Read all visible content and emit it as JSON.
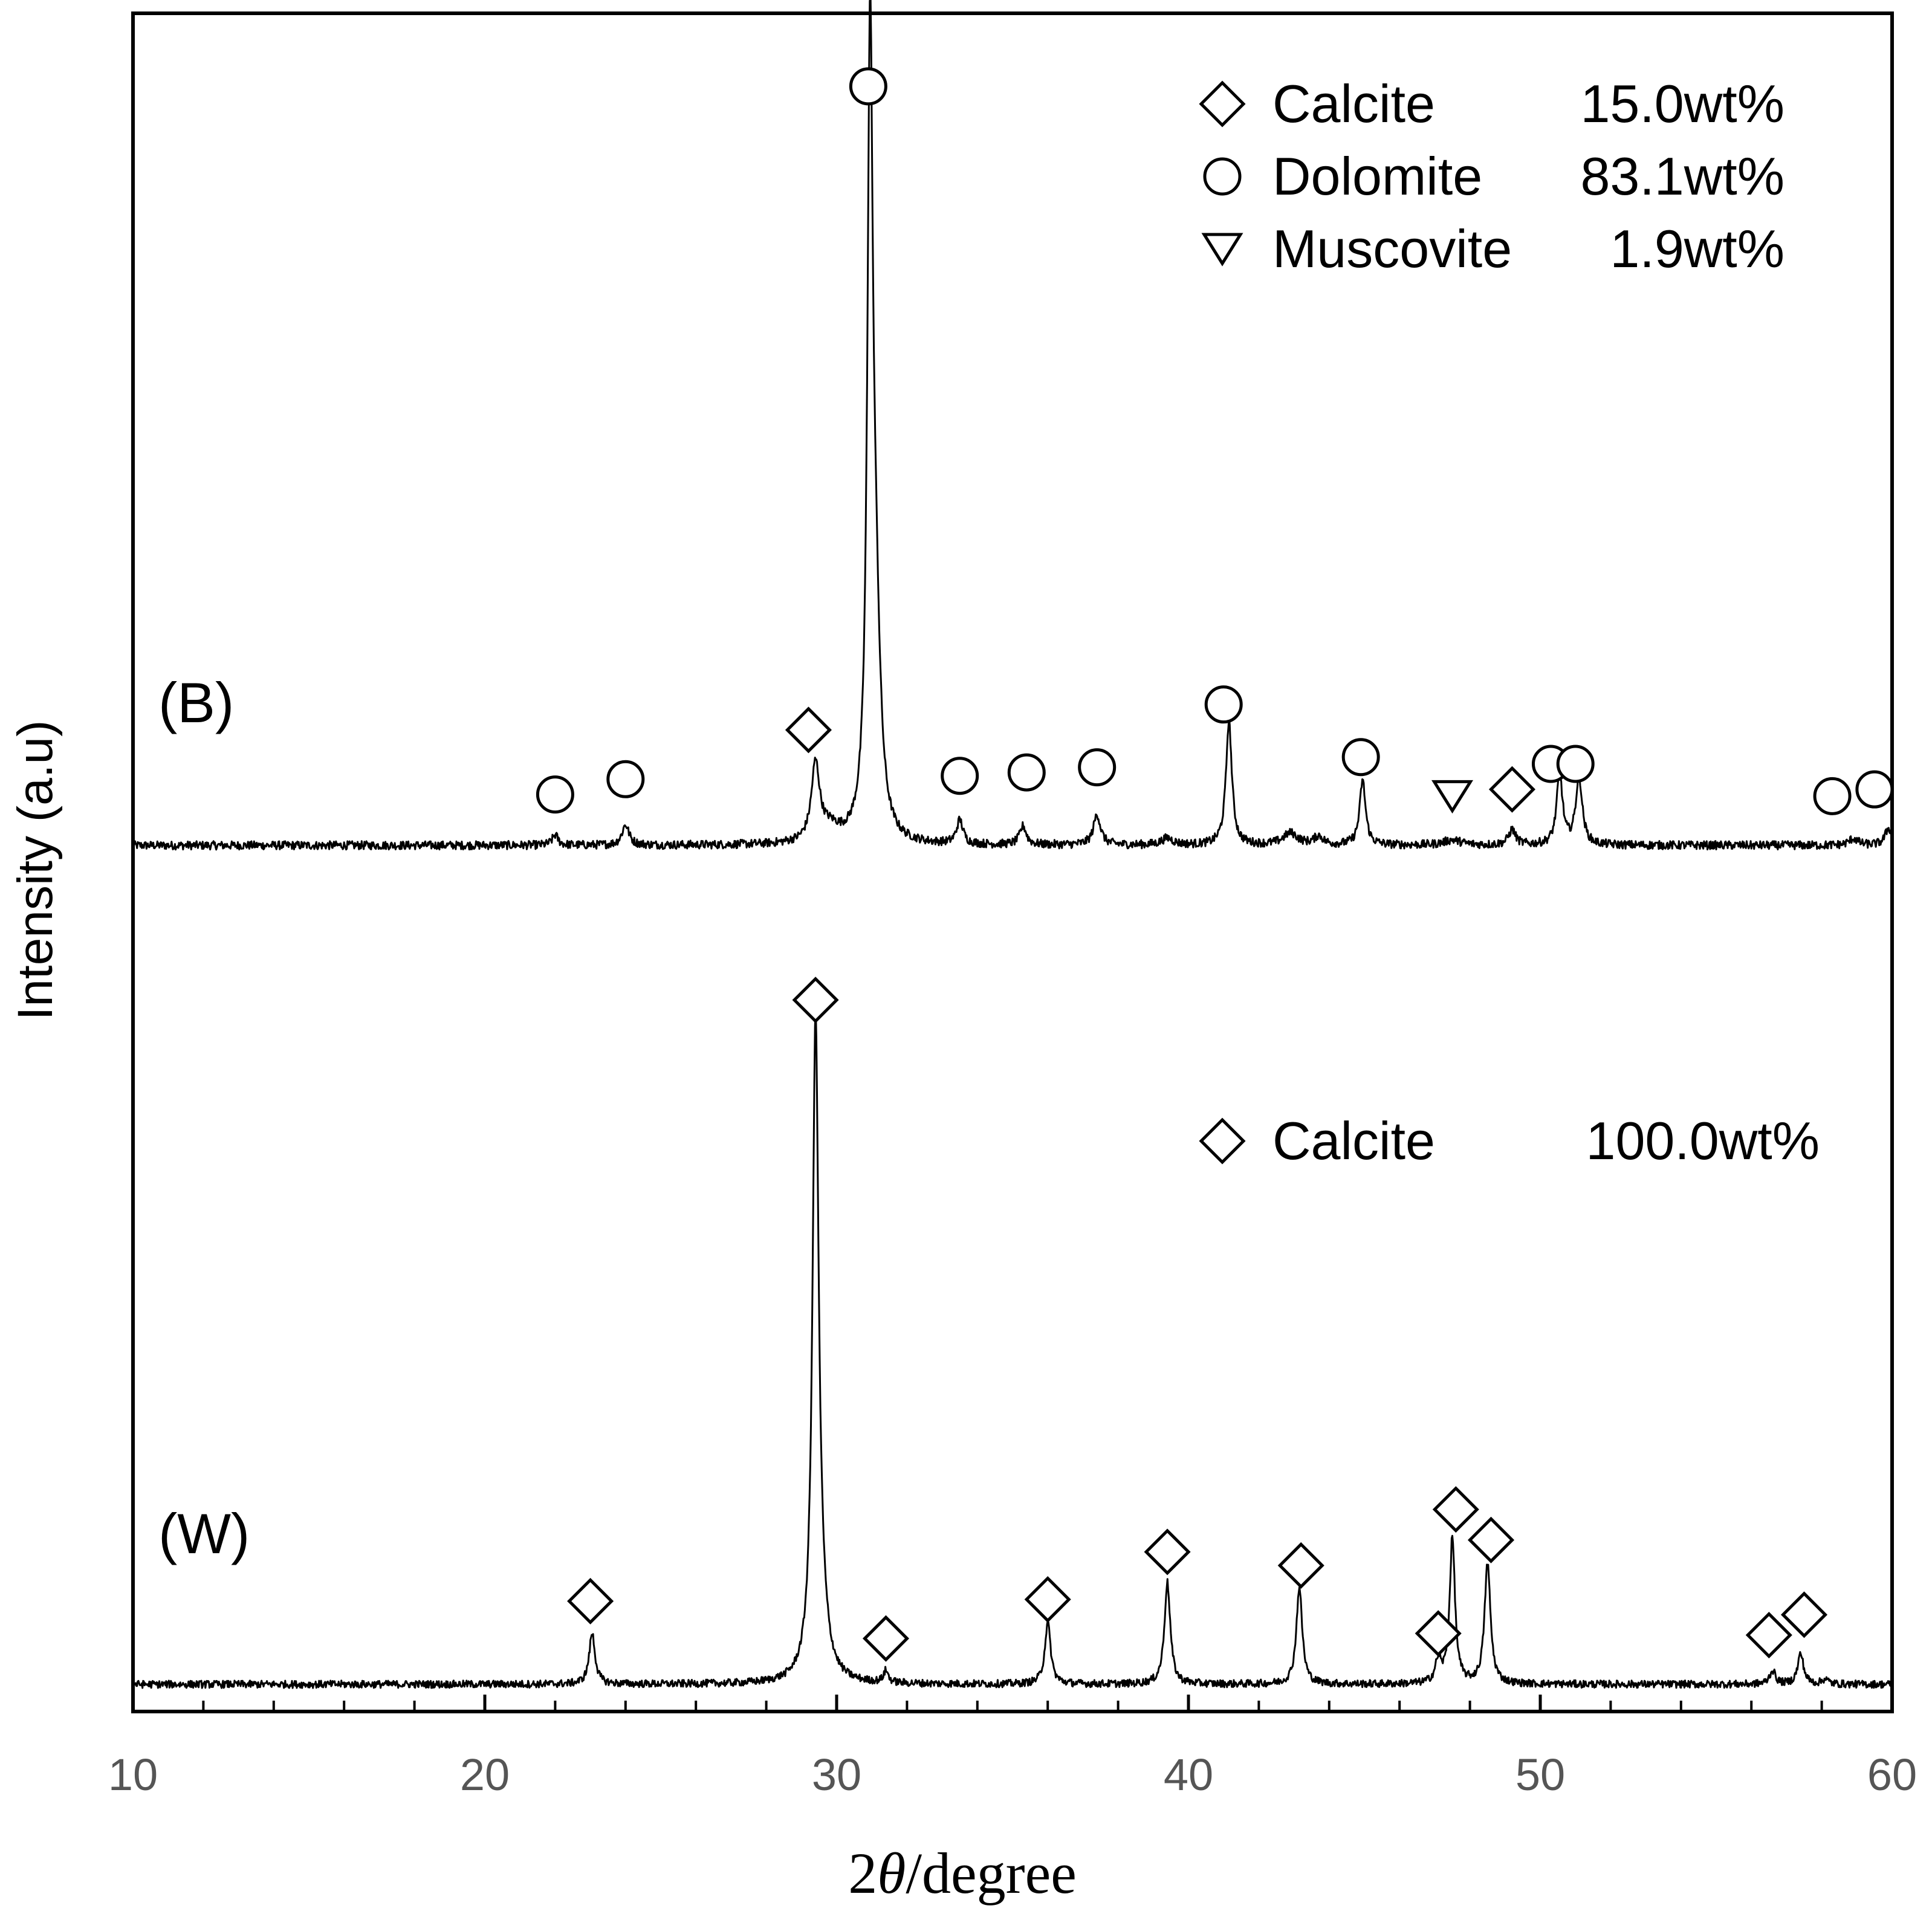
{
  "chart_data": {
    "type": "line",
    "title": "",
    "xlabel_prefix": "2",
    "xlabel_theta": "θ",
    "xlabel_suffix": "/degree",
    "ylabel": "Intensity (a.u)",
    "xlim": [
      10,
      60
    ],
    "xticks": [
      10,
      20,
      30,
      40,
      50,
      60
    ],
    "xtick_labels": [
      "10",
      "20",
      "30",
      "40",
      "50",
      "60"
    ],
    "y_range": [
      0,
      100
    ],
    "grid": false,
    "series": [
      {
        "name": "(B)",
        "baseline": 51,
        "noise": 0.25,
        "peaks": [
          {
            "x": 22.0,
            "h": 0.6,
            "w": 0.1
          },
          {
            "x": 24.0,
            "h": 1.2,
            "w": 0.12
          },
          {
            "x": 29.4,
            "h": 4.5,
            "w": 0.14
          },
          {
            "x": 29.8,
            "h": 0.8,
            "w": 0.35
          },
          {
            "x": 30.95,
            "h": 44.0,
            "w": 0.09
          },
          {
            "x": 31.1,
            "h": 12.0,
            "w": 0.16
          },
          {
            "x": 33.5,
            "h": 1.4,
            "w": 0.11
          },
          {
            "x": 35.3,
            "h": 1.1,
            "w": 0.11
          },
          {
            "x": 37.4,
            "h": 1.8,
            "w": 0.12
          },
          {
            "x": 39.4,
            "h": 0.4,
            "w": 0.2
          },
          {
            "x": 41.15,
            "h": 7.3,
            "w": 0.1
          },
          {
            "x": 42.9,
            "h": 0.7,
            "w": 0.25
          },
          {
            "x": 43.7,
            "h": 0.5,
            "w": 0.15
          },
          {
            "x": 44.95,
            "h": 3.8,
            "w": 0.1
          },
          {
            "x": 47.5,
            "h": 0.3,
            "w": 0.3
          },
          {
            "x": 49.2,
            "h": 0.9,
            "w": 0.12
          },
          {
            "x": 50.55,
            "h": 4.2,
            "w": 0.1
          },
          {
            "x": 51.1,
            "h": 4.0,
            "w": 0.11
          },
          {
            "x": 58.9,
            "h": 0.4,
            "w": 0.15
          },
          {
            "x": 59.9,
            "h": 1.0,
            "w": 0.12
          }
        ],
        "markers": [
          {
            "x": 22.0,
            "y": 54.0,
            "symbol": "circle"
          },
          {
            "x": 24.0,
            "y": 54.9,
            "symbol": "circle"
          },
          {
            "x": 29.2,
            "y": 57.8,
            "symbol": "diamond"
          },
          {
            "x": 30.9,
            "y": 95.7,
            "symbol": "circle"
          },
          {
            "x": 33.5,
            "y": 55.1,
            "symbol": "circle"
          },
          {
            "x": 35.4,
            "y": 55.3,
            "symbol": "circle"
          },
          {
            "x": 37.4,
            "y": 55.6,
            "symbol": "circle"
          },
          {
            "x": 41.0,
            "y": 59.3,
            "symbol": "circle"
          },
          {
            "x": 44.9,
            "y": 56.2,
            "symbol": "circle"
          },
          {
            "x": 47.5,
            "y": 53.9,
            "symbol": "triangle-down"
          },
          {
            "x": 49.2,
            "y": 54.3,
            "symbol": "diamond"
          },
          {
            "x": 50.3,
            "y": 55.8,
            "symbol": "circle"
          },
          {
            "x": 51.0,
            "y": 55.8,
            "symbol": "circle"
          },
          {
            "x": 58.3,
            "y": 53.9,
            "symbol": "circle"
          },
          {
            "x": 59.5,
            "y": 54.3,
            "symbol": "circle"
          }
        ]
      },
      {
        "name": "(W)",
        "baseline": 1.6,
        "noise": 0.22,
        "peaks": [
          {
            "x": 23.05,
            "h": 3.0,
            "w": 0.1
          },
          {
            "x": 29.4,
            "h": 36.5,
            "w": 0.1
          },
          {
            "x": 29.5,
            "h": 4.0,
            "w": 0.22
          },
          {
            "x": 31.4,
            "h": 0.7,
            "w": 0.08
          },
          {
            "x": 36.0,
            "h": 3.6,
            "w": 0.1
          },
          {
            "x": 39.4,
            "h": 6.0,
            "w": 0.1
          },
          {
            "x": 43.15,
            "h": 5.7,
            "w": 0.1
          },
          {
            "x": 47.1,
            "h": 1.3,
            "w": 0.1
          },
          {
            "x": 47.5,
            "h": 8.6,
            "w": 0.09
          },
          {
            "x": 48.5,
            "h": 7.1,
            "w": 0.1
          },
          {
            "x": 56.6,
            "h": 0.8,
            "w": 0.1
          },
          {
            "x": 57.4,
            "h": 1.8,
            "w": 0.1
          },
          {
            "x": 58.1,
            "h": 0.3,
            "w": 0.1
          }
        ],
        "markers": [
          {
            "x": 23.0,
            "y": 6.5,
            "symbol": "diamond"
          },
          {
            "x": 29.4,
            "y": 41.9,
            "symbol": "diamond"
          },
          {
            "x": 31.4,
            "y": 4.3,
            "symbol": "diamond"
          },
          {
            "x": 36.0,
            "y": 6.6,
            "symbol": "diamond"
          },
          {
            "x": 39.4,
            "y": 9.4,
            "symbol": "diamond"
          },
          {
            "x": 43.2,
            "y": 8.6,
            "symbol": "diamond"
          },
          {
            "x": 47.1,
            "y": 4.6,
            "symbol": "diamond"
          },
          {
            "x": 47.6,
            "y": 11.9,
            "symbol": "diamond"
          },
          {
            "x": 48.6,
            "y": 10.1,
            "symbol": "diamond"
          },
          {
            "x": 56.5,
            "y": 4.5,
            "symbol": "diamond"
          },
          {
            "x": 57.5,
            "y": 5.7,
            "symbol": "diamond"
          }
        ]
      }
    ],
    "panel_labels": [
      "(B)",
      "(W)"
    ],
    "legends": [
      {
        "panel": "(B)",
        "entries": [
          {
            "symbol": "diamond",
            "name": "Calcite",
            "value": "15.0wt%"
          },
          {
            "symbol": "circle",
            "name": "Dolomite",
            "value": "83.1wt%"
          },
          {
            "symbol": "triangle-down",
            "name": "Muscovite",
            "value": "1.9wt%"
          }
        ]
      },
      {
        "panel": "(W)",
        "entries": [
          {
            "symbol": "diamond",
            "name": "Calcite",
            "value": "100.0wt%"
          }
        ]
      }
    ]
  }
}
